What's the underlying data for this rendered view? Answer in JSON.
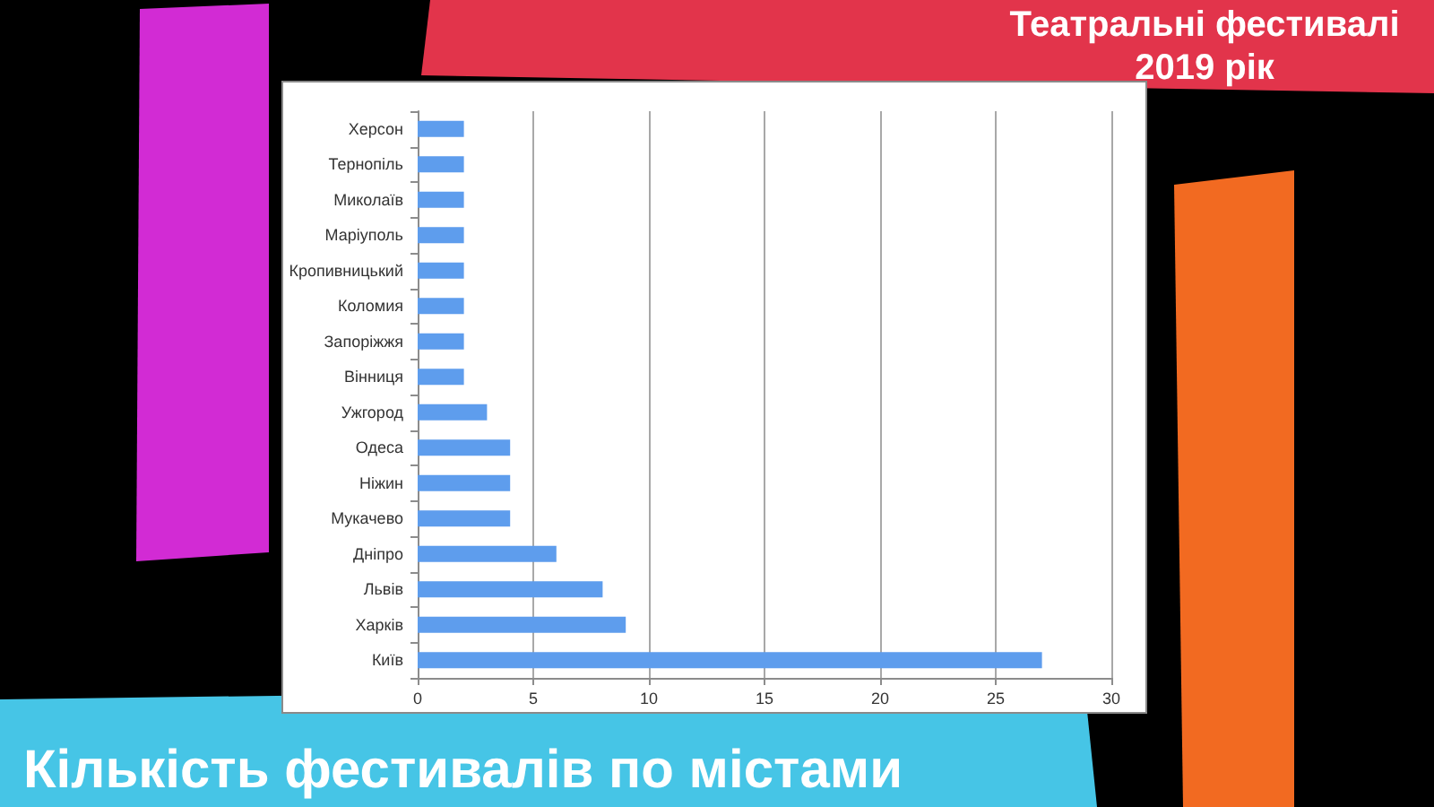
{
  "chart_data": {
    "type": "bar",
    "orientation": "horizontal",
    "title": "Театральні фестивалі 2019 рік",
    "subtitle": "Кількість фестивалів по містами",
    "categories": [
      "Херсон",
      "Тернопіль",
      "Миколаїв",
      "Маріуполь",
      "Кропивницький",
      "Коломия",
      "Запоріжжя",
      "Вінниця",
      "Ужгород",
      "Одеса",
      "Ніжин",
      "Мукачево",
      "Дніпро",
      "Львів",
      "Харків",
      "Київ"
    ],
    "values": [
      2,
      2,
      2,
      2,
      2,
      2,
      2,
      2,
      3,
      4,
      4,
      4,
      6,
      8,
      9,
      27
    ],
    "color": "#5e9ded",
    "xlim": [
      0,
      30
    ],
    "xticks": [
      0,
      5,
      10,
      15,
      20,
      25,
      30
    ],
    "grid": "x"
  }
}
